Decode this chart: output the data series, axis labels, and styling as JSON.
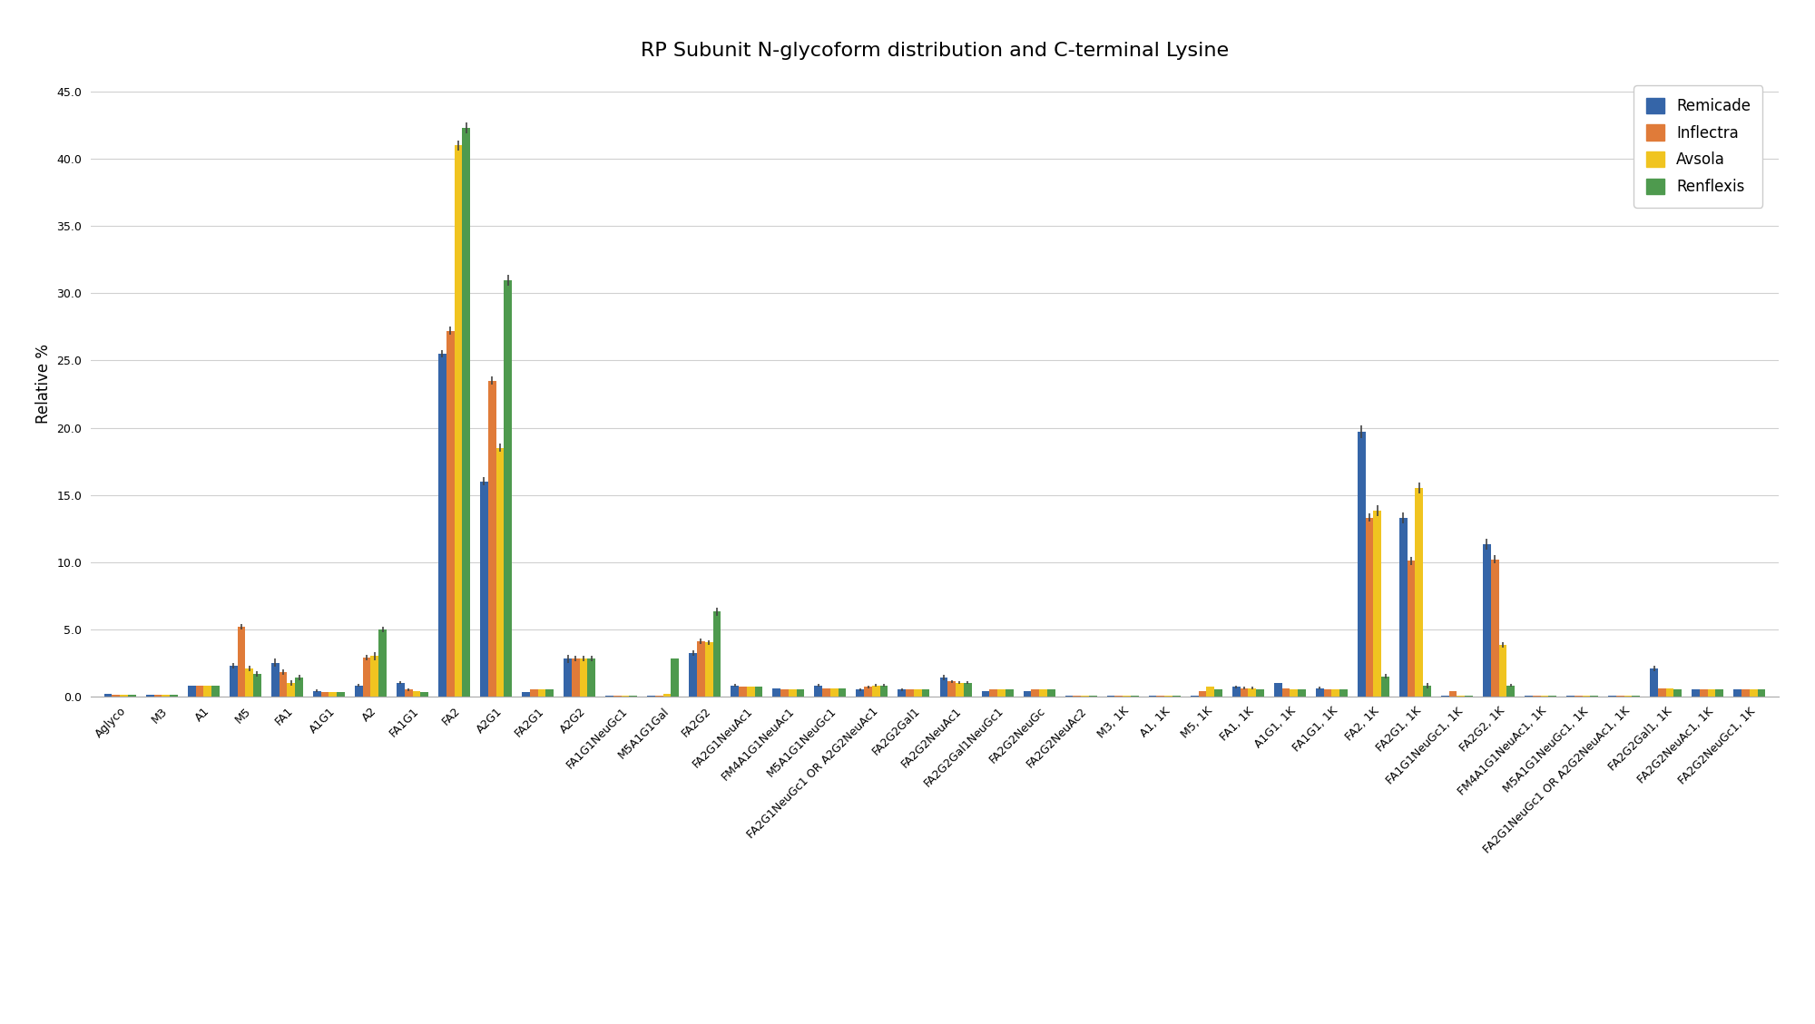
{
  "title": "RP Subunit N-glycoform distribution and C-terminal Lysine",
  "ylabel": "Relative %",
  "ylim": [
    0,
    46.5
  ],
  "yticks": [
    0.0,
    5.0,
    10.0,
    15.0,
    20.0,
    25.0,
    30.0,
    35.0,
    40.0,
    45.0
  ],
  "series_names": [
    "Remicade",
    "Inflectra",
    "Avsola",
    "Renflexis"
  ],
  "series_colors": [
    "#3565a8",
    "#e07b39",
    "#f0c420",
    "#4e9a4e"
  ],
  "categories": [
    "Aglyco",
    "M3",
    "A1",
    "M5",
    "FA1",
    "A1G1",
    "A2",
    "FA1G1",
    "FA2",
    "A2G1",
    "FA2G1",
    "A2G2",
    "FA1G1NeuGc1",
    "M5A1G1Gal",
    "FA2G2",
    "FA2G1NeuAc1",
    "FM4A1G1NeuAc1",
    "M5A1G1NeuGc1",
    "FA2G1NeuGc1 OR A2G2NeuAc1",
    "FA2G2Gal1",
    "FA2G2NeuAc1",
    "FA2G2Gal1NeuGc1",
    "FA2G2NeuGc",
    "FA2G2NeuAc2",
    "M3, 1K",
    "A1, 1K",
    "M5, 1K",
    "FA1, 1K",
    "A1G1, 1K",
    "FA1G1, 1K",
    "FA2, 1K",
    "FA2G1, 1K",
    "FA1G1NeuGc1, 1K",
    "FA2G2, 1K",
    "FM4A1G1NeuAc1, 1K",
    "M5A1G1NeuGc1, 1K",
    "FA2G1NeuGc1 OR A2G2NeuAc1, 1K",
    "FA2G2Gal1, 1K",
    "FA2G2NeuAc1, 1K",
    "FA2G2NeuGc1, 1K"
  ],
  "data": {
    "Remicade": [
      0.2,
      0.1,
      0.8,
      2.3,
      2.5,
      0.4,
      0.8,
      1.0,
      25.5,
      16.0,
      0.3,
      2.8,
      0.05,
      0.05,
      3.2,
      0.8,
      0.6,
      0.8,
      0.5,
      0.5,
      1.4,
      0.4,
      0.4,
      0.05,
      0.05,
      0.05,
      0.05,
      0.7,
      1.0,
      0.6,
      19.7,
      13.3,
      0.05,
      11.3,
      0.05,
      0.05,
      0.05,
      2.1,
      0.5,
      0.5
    ],
    "Inflectra": [
      0.1,
      0.1,
      0.8,
      5.2,
      1.8,
      0.3,
      2.9,
      0.5,
      27.2,
      23.5,
      0.5,
      2.8,
      0.05,
      0.05,
      4.1,
      0.7,
      0.5,
      0.6,
      0.7,
      0.5,
      1.1,
      0.5,
      0.5,
      0.05,
      0.05,
      0.05,
      0.4,
      0.6,
      0.6,
      0.5,
      13.3,
      10.1,
      0.4,
      10.2,
      0.05,
      0.05,
      0.05,
      0.6,
      0.5,
      0.5
    ],
    "Avsola": [
      0.1,
      0.1,
      0.8,
      2.1,
      1.0,
      0.3,
      3.0,
      0.4,
      41.0,
      18.5,
      0.5,
      2.8,
      0.05,
      0.2,
      4.0,
      0.7,
      0.5,
      0.6,
      0.8,
      0.5,
      1.0,
      0.5,
      0.5,
      0.05,
      0.05,
      0.05,
      0.7,
      0.6,
      0.5,
      0.5,
      13.8,
      15.5,
      0.05,
      3.8,
      0.05,
      0.05,
      0.05,
      0.6,
      0.5,
      0.5
    ],
    "Renflexis": [
      0.1,
      0.1,
      0.8,
      1.7,
      1.4,
      0.3,
      5.0,
      0.3,
      42.3,
      31.0,
      0.5,
      2.8,
      0.05,
      2.8,
      6.3,
      0.7,
      0.5,
      0.6,
      0.8,
      0.5,
      1.0,
      0.5,
      0.5,
      0.05,
      0.05,
      0.05,
      0.5,
      0.5,
      0.5,
      0.5,
      1.5,
      0.8,
      0.05,
      0.8,
      0.05,
      0.05,
      0.05,
      0.5,
      0.5,
      0.5
    ]
  },
  "error_bars": {
    "Remicade": [
      0.0,
      0.0,
      0.0,
      0.2,
      0.3,
      0.1,
      0.1,
      0.1,
      0.3,
      0.3,
      0.0,
      0.3,
      0.0,
      0.0,
      0.2,
      0.1,
      0.0,
      0.1,
      0.1,
      0.1,
      0.2,
      0.0,
      0.0,
      0.0,
      0.0,
      0.0,
      0.0,
      0.1,
      0.0,
      0.1,
      0.5,
      0.4,
      0.0,
      0.4,
      0.0,
      0.0,
      0.0,
      0.2,
      0.0,
      0.0
    ],
    "Inflectra": [
      0.0,
      0.0,
      0.0,
      0.2,
      0.2,
      0.0,
      0.2,
      0.1,
      0.3,
      0.3,
      0.0,
      0.2,
      0.0,
      0.0,
      0.2,
      0.0,
      0.0,
      0.0,
      0.1,
      0.0,
      0.1,
      0.0,
      0.0,
      0.0,
      0.0,
      0.0,
      0.0,
      0.1,
      0.0,
      0.0,
      0.3,
      0.3,
      0.0,
      0.3,
      0.0,
      0.0,
      0.0,
      0.0,
      0.0,
      0.0
    ],
    "Avsola": [
      0.0,
      0.0,
      0.0,
      0.2,
      0.2,
      0.0,
      0.3,
      0.0,
      0.4,
      0.3,
      0.0,
      0.2,
      0.0,
      0.0,
      0.2,
      0.0,
      0.0,
      0.0,
      0.1,
      0.0,
      0.1,
      0.0,
      0.0,
      0.0,
      0.0,
      0.0,
      0.0,
      0.1,
      0.0,
      0.0,
      0.4,
      0.4,
      0.0,
      0.2,
      0.0,
      0.0,
      0.0,
      0.0,
      0.0,
      0.0
    ],
    "Renflexis": [
      0.0,
      0.0,
      0.0,
      0.2,
      0.2,
      0.0,
      0.2,
      0.0,
      0.4,
      0.4,
      0.0,
      0.2,
      0.0,
      0.0,
      0.3,
      0.0,
      0.0,
      0.0,
      0.1,
      0.0,
      0.1,
      0.0,
      0.0,
      0.0,
      0.0,
      0.0,
      0.0,
      0.0,
      0.0,
      0.0,
      0.2,
      0.2,
      0.0,
      0.1,
      0.0,
      0.0,
      0.0,
      0.0,
      0.0,
      0.0
    ]
  },
  "title_fontsize": 16,
  "axis_fontsize": 12,
  "tick_fontsize": 9,
  "legend_fontsize": 12
}
